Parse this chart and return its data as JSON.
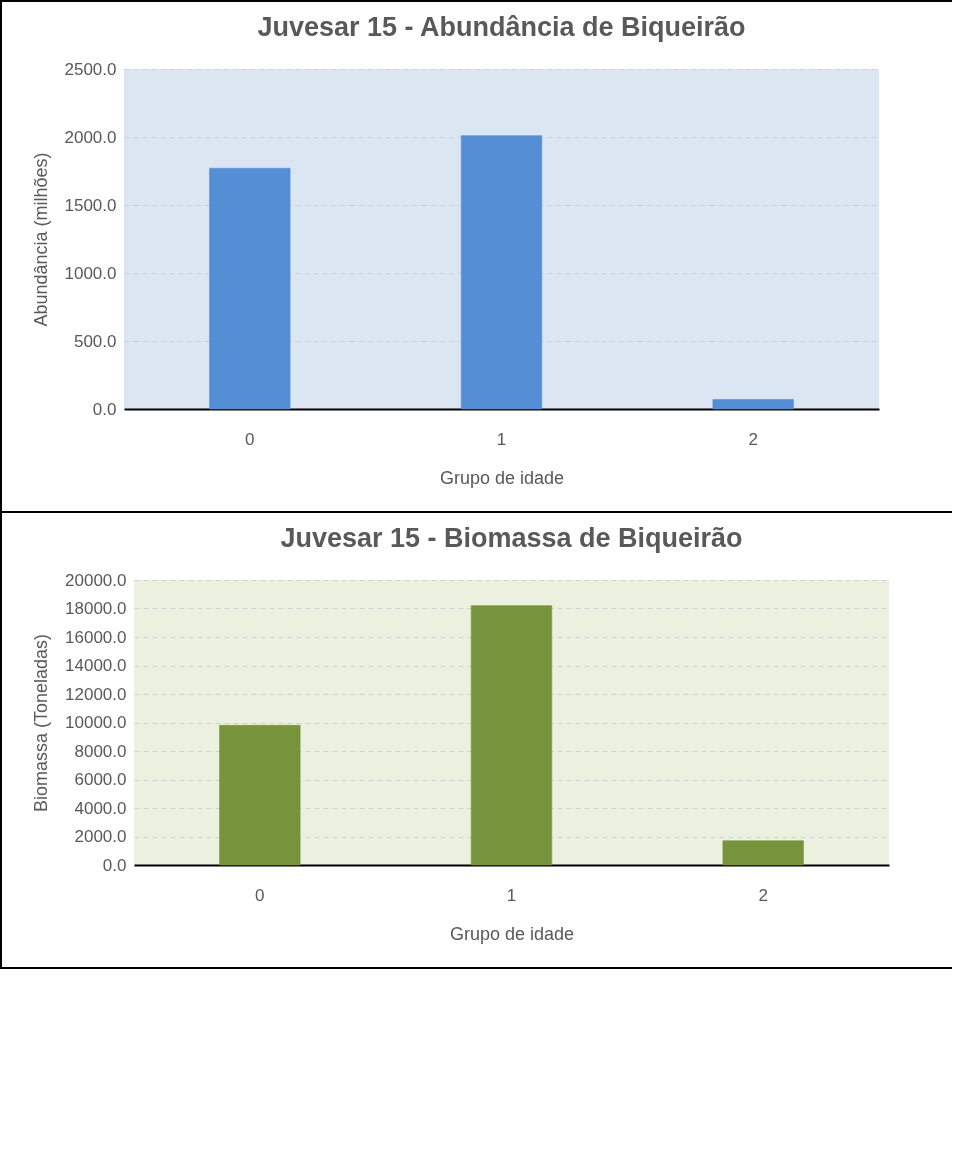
{
  "chart_data": [
    {
      "type": "bar",
      "title": "Juvesar 15 - Abundância de Biqueirão",
      "xlabel": "Grupo de idade",
      "ylabel": "Abundância (milhões)",
      "categories": [
        "0",
        "1",
        "2"
      ],
      "values": [
        1770,
        2010,
        70
      ],
      "color": "#558ed5",
      "ylim": [
        0,
        2500
      ],
      "yticks": [
        {
          "value": 0,
          "label": "0.0"
        },
        {
          "value": 500,
          "label": "500.0"
        },
        {
          "value": 1000,
          "label": "1000.0"
        },
        {
          "value": 1500,
          "label": "1500.0"
        },
        {
          "value": 2000,
          "label": "2000.0"
        },
        {
          "value": 2500,
          "label": "2500.0"
        }
      ],
      "grid": "y"
    },
    {
      "type": "bar",
      "title": "Juvesar 15 - Biomassa de Biqueirão",
      "xlabel": "Grupo de idade",
      "ylabel": "Biomassa (Toneladas)",
      "categories": [
        "0",
        "1",
        "2"
      ],
      "values": [
        9800,
        18200,
        1700
      ],
      "color": "#77933c",
      "ylim": [
        0,
        20000
      ],
      "yticks": [
        {
          "value": 0,
          "label": "0.0"
        },
        {
          "value": 2000,
          "label": "2000.0"
        },
        {
          "value": 4000,
          "label": "4000.0"
        },
        {
          "value": 6000,
          "label": "6000.0"
        },
        {
          "value": 8000,
          "label": "8000.0"
        },
        {
          "value": 10000,
          "label": "10000.0"
        },
        {
          "value": 12000,
          "label": "12000.0"
        },
        {
          "value": 14000,
          "label": "14000.0"
        },
        {
          "value": 16000,
          "label": "16000.0"
        },
        {
          "value": 18000,
          "label": "18000.0"
        },
        {
          "value": 20000,
          "label": "20000.0"
        }
      ],
      "grid": "y"
    }
  ]
}
